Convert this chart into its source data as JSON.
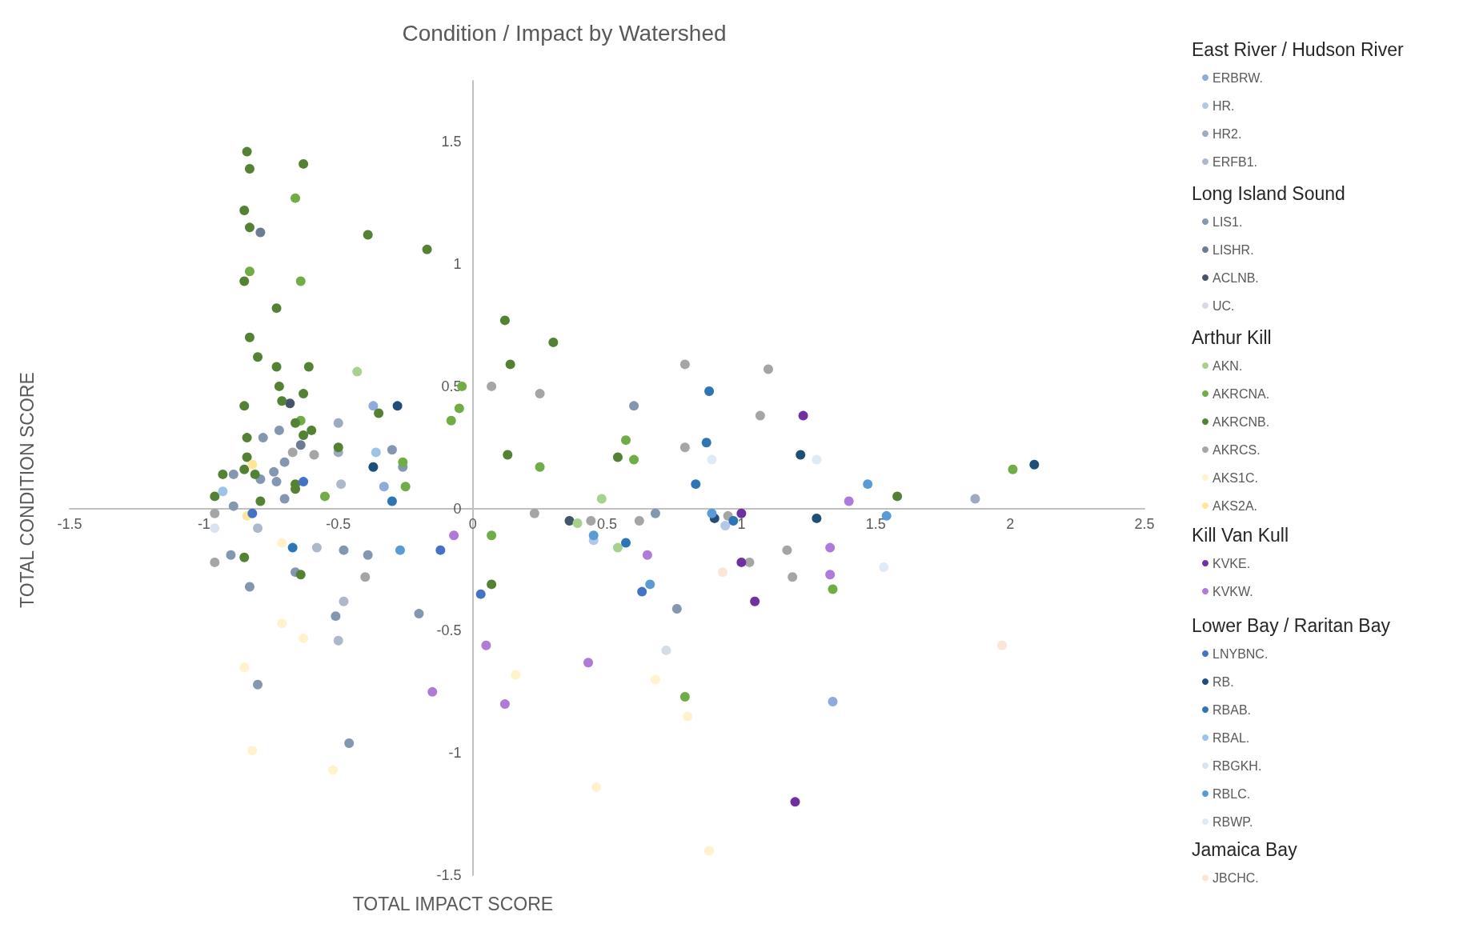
{
  "chart_data": {
    "type": "scatter",
    "title": "Condition / Impact by Watershed",
    "xlabel": "TOTAL IMPACT SCORE",
    "ylabel": "TOTAL CONDITION SCORE",
    "annotations": [
      "East River / Hudson River",
      "Long Island Sound",
      "Arthur Kill",
      "Kill Van Kull",
      "Lower Bay / Raritan Bay",
      "Jamaica Bay"
    ],
    "xlim": [
      -1.5,
      2.5
    ],
    "xticks": [
      -1.5,
      -1,
      -0.5,
      0,
      0.5,
      1,
      1.5,
      2,
      2.5
    ],
    "ylim": [
      -1.5,
      1.75
    ],
    "yticks": [
      -1.5,
      -1,
      -0.5,
      0,
      0.5,
      1,
      1.5
    ],
    "grid": false,
    "legend": "right",
    "marker": "circle",
    "series": [
      {
        "name": "ERBRW.",
        "color": "#8faadc",
        "x": [
          -0.37,
          -0.33,
          1.34
        ],
        "values": [
          0.42,
          0.09,
          -0.79
        ]
      },
      {
        "name": "HR.",
        "color": "#b4c7e7",
        "x": [
          0.94,
          0.45
        ],
        "values": [
          -0.07,
          -0.13
        ]
      },
      {
        "name": "HR2.",
        "color": "#9dabc0",
        "x": [
          1.87,
          -0.5,
          -0.5
        ],
        "values": [
          0.04,
          0.35,
          0.23
        ]
      },
      {
        "name": "ERFB1.",
        "color": "#adb9ca",
        "x": [
          -0.49,
          -0.8,
          -0.58,
          -0.48,
          -0.5
        ],
        "values": [
          0.1,
          -0.08,
          -0.16,
          -0.38,
          -0.54
        ]
      },
      {
        "name": "LIS1.",
        "color": "#8497b0",
        "x": [
          -0.72,
          -0.78,
          -0.3,
          -0.7,
          -0.26,
          -0.74,
          -0.89,
          -0.79,
          -0.73,
          -0.7,
          -0.89,
          -0.48,
          -0.39,
          -0.9,
          -0.66,
          -0.83,
          -0.51,
          -0.2,
          -0.8,
          -0.46,
          0.6,
          0.68,
          0.76
        ],
        "values": [
          0.32,
          0.29,
          0.24,
          0.19,
          0.17,
          0.15,
          0.14,
          0.12,
          0.11,
          0.04,
          0.01,
          -0.17,
          -0.19,
          -0.19,
          -0.26,
          -0.32,
          -0.44,
          -0.43,
          -0.72,
          -0.96,
          0.42,
          -0.02,
          -0.41
        ]
      },
      {
        "name": "LISHR.",
        "color": "#6b7c93",
        "x": [
          -0.79,
          -0.64
        ],
        "values": [
          1.13,
          0.26
        ]
      },
      {
        "name": "ACLNB.",
        "color": "#44546a",
        "x": [
          -0.68,
          0.36
        ],
        "values": [
          0.43,
          -0.05
        ]
      },
      {
        "name": "UC.",
        "color": "#d6dce5",
        "x": [
          0.72
        ],
        "values": [
          -0.58
        ]
      },
      {
        "name": "AKN.",
        "color": "#a9d18e",
        "x": [
          -0.43,
          0.48,
          0.39,
          0.54
        ],
        "values": [
          0.56,
          0.04,
          -0.06,
          -0.16
        ]
      },
      {
        "name": "AKRCNA.",
        "color": "#70ad47",
        "x": [
          -0.66,
          -0.83,
          -0.64,
          -0.04,
          -0.05,
          -0.08,
          -0.64,
          -0.26,
          -0.25,
          -0.55,
          0.07,
          0.57,
          0.6,
          0.25,
          1.34,
          2.01,
          0.79
        ],
        "values": [
          1.27,
          0.97,
          0.93,
          0.5,
          0.41,
          0.36,
          0.36,
          0.19,
          0.09,
          0.05,
          -0.11,
          0.28,
          0.2,
          0.17,
          -0.33,
          0.16,
          -0.77
        ]
      },
      {
        "name": "AKRCNB.",
        "color": "#548235",
        "x": [
          -0.84,
          -0.63,
          -0.83,
          -0.85,
          -0.83,
          -0.39,
          -0.17,
          -0.85,
          -0.73,
          -0.83,
          -0.8,
          -0.73,
          -0.61,
          -0.72,
          -0.63,
          -0.71,
          -0.85,
          -0.35,
          -0.66,
          -0.6,
          -0.84,
          -0.63,
          -0.5,
          -0.84,
          -0.85,
          -0.93,
          -0.81,
          -0.66,
          -0.66,
          -0.96,
          -0.79,
          -0.85,
          -0.64,
          0.07,
          0.12,
          0.3,
          0.14,
          0.13,
          0.54,
          1.58
        ],
        "values": [
          1.46,
          1.41,
          1.39,
          1.22,
          1.15,
          1.12,
          1.06,
          0.93,
          0.82,
          0.7,
          0.62,
          0.58,
          0.58,
          0.5,
          0.47,
          0.44,
          0.42,
          0.39,
          0.35,
          0.32,
          0.29,
          0.3,
          0.25,
          0.21,
          0.16,
          0.14,
          0.14,
          0.1,
          0.08,
          0.05,
          0.03,
          -0.2,
          -0.27,
          -0.31,
          0.77,
          0.68,
          0.59,
          0.22,
          0.21,
          0.05
        ]
      },
      {
        "name": "AKRCS.",
        "color": "#a5a5a5",
        "x": [
          0.07,
          -0.67,
          -0.59,
          -0.96,
          -0.96,
          -0.4,
          0.25,
          0.79,
          1.1,
          1.07,
          0.79,
          0.23,
          0.44,
          0.62,
          0.95,
          1.17,
          1.03,
          1.19
        ],
        "values": [
          0.5,
          0.23,
          0.22,
          -0.02,
          -0.22,
          -0.28,
          0.47,
          0.59,
          0.57,
          0.38,
          0.25,
          -0.02,
          -0.05,
          -0.05,
          -0.03,
          -0.17,
          -0.22,
          -0.28
        ]
      },
      {
        "name": "AKS1C.",
        "color": "#fff2cc",
        "x": [
          -0.71,
          -0.71,
          -0.63,
          -0.85,
          -0.82,
          -0.52,
          0.16,
          0.46,
          0.68,
          0.8,
          0.88
        ],
        "values": [
          -0.14,
          -0.47,
          -0.53,
          -0.65,
          -0.99,
          -1.07,
          -0.68,
          -1.14,
          -0.7,
          -0.85,
          -1.4
        ]
      },
      {
        "name": "AKS2A.",
        "color": "#ffe699",
        "x": [
          -0.82,
          -0.84
        ],
        "values": [
          0.18,
          -0.03
        ]
      },
      {
        "name": "KVKE.",
        "color": "#7030a0",
        "x": [
          1.23,
          1.0,
          1.0,
          1.05,
          1.2
        ],
        "values": [
          0.38,
          -0.02,
          -0.22,
          -0.38,
          -1.2
        ]
      },
      {
        "name": "KVKW.",
        "color": "#b07ad8",
        "x": [
          -0.07,
          -0.15,
          0.05,
          0.12,
          0.43,
          1.4,
          0.65,
          1.33,
          1.33
        ],
        "values": [
          -0.11,
          -0.75,
          -0.56,
          -0.8,
          -0.63,
          0.03,
          -0.19,
          -0.16,
          -0.27
        ]
      },
      {
        "name": "LNYBNC.",
        "color": "#4472c4",
        "x": [
          -0.63,
          -0.82,
          -0.12,
          0.03,
          0.63
        ],
        "values": [
          0.11,
          -0.02,
          -0.17,
          -0.35,
          -0.34
        ]
      },
      {
        "name": "RB.",
        "color": "#1f4e79",
        "x": [
          -0.28,
          -0.37,
          1.22,
          1.28,
          2.09,
          0.9
        ],
        "values": [
          0.42,
          0.17,
          0.22,
          -0.04,
          0.18,
          -0.04
        ]
      },
      {
        "name": "RBAB.",
        "color": "#2e75b6",
        "x": [
          -0.3,
          -0.67,
          0.88,
          0.87,
          0.83,
          0.97,
          0.57
        ],
        "values": [
          0.03,
          -0.16,
          0.48,
          0.27,
          0.1,
          -0.05,
          -0.14
        ]
      },
      {
        "name": "RBAL.",
        "color": "#9dc3e6",
        "x": [
          -0.36,
          -0.93
        ],
        "values": [
          0.23,
          0.07
        ]
      },
      {
        "name": "RBGKH.",
        "color": "#dae3f3",
        "x": [
          -0.96
        ],
        "values": [
          -0.08
        ]
      },
      {
        "name": "RBLC.",
        "color": "#5b9bd5",
        "x": [
          -0.27,
          1.47,
          0.89,
          0.45,
          0.66,
          1.54
        ],
        "values": [
          -0.17,
          0.1,
          -0.02,
          -0.11,
          -0.31,
          -0.03
        ]
      },
      {
        "name": "RBWP.",
        "color": "#deebf7",
        "x": [
          0.89,
          1.28,
          1.53
        ],
        "values": [
          0.2,
          0.2,
          -0.24
        ]
      },
      {
        "name": "JBCHC.",
        "color": "#fbe5d6",
        "x": [
          0.93,
          1.97
        ],
        "values": [
          -0.26,
          -0.56
        ]
      }
    ]
  }
}
